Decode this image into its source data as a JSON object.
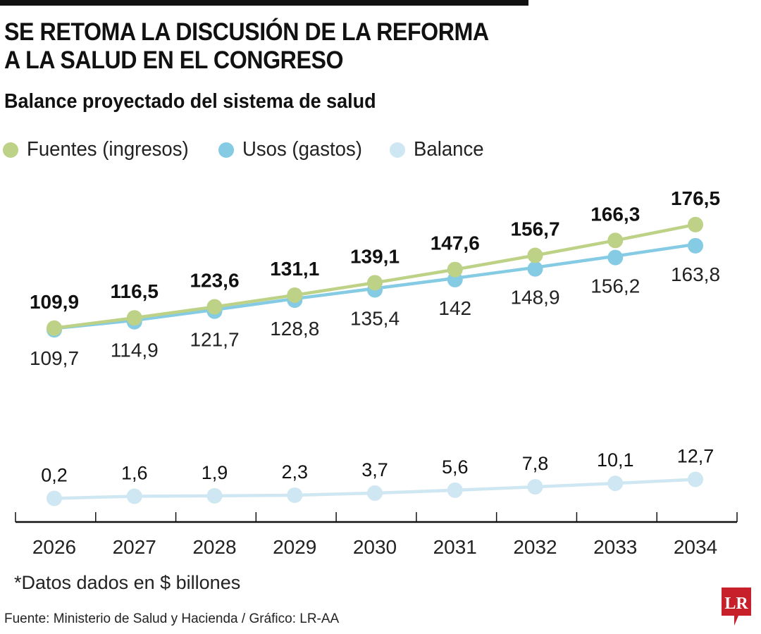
{
  "header": {
    "title_line1": "SE RETOMA LA DISCUSIÓN DE LA REFORMA",
    "title_line2": "A LA SALUD EN EL CONGRESO",
    "subtitle": "Balance proyectado del sistema de salud"
  },
  "legend": [
    {
      "label": "Fuentes (ingresos)",
      "color": "#bdd286"
    },
    {
      "label": "Usos (gastos)",
      "color": "#84cbe3"
    },
    {
      "label": "Balance",
      "color": "#cfe7f2"
    }
  ],
  "chart_data": {
    "type": "line",
    "title": "Balance proyectado del sistema de salud",
    "xlabel": "",
    "ylabel": "",
    "units": "$ billones",
    "grid": false,
    "legend_position": "top-left",
    "x": [
      "2026",
      "2027",
      "2028",
      "2029",
      "2030",
      "2031",
      "2032",
      "2033",
      "2034"
    ],
    "series": [
      {
        "name": "Fuentes (ingresos)",
        "color": "#bdd286",
        "values": [
          109.9,
          116.5,
          123.6,
          131.1,
          139.1,
          147.6,
          156.7,
          166.3,
          176.5
        ],
        "labels": [
          "109,9",
          "116,5",
          "123,6",
          "131,1",
          "139,1",
          "147,6",
          "156,7",
          "166,3",
          "176,5"
        ]
      },
      {
        "name": "Usos (gastos)",
        "color": "#84cbe3",
        "values": [
          109.7,
          114.9,
          121.7,
          128.8,
          135.4,
          142,
          148.9,
          156.2,
          163.8
        ],
        "labels": [
          "109,7",
          "114,9",
          "121,7",
          "128,8",
          "135,4",
          "142",
          "148,9",
          "156,2",
          "163,8"
        ]
      },
      {
        "name": "Balance",
        "color": "#cfe7f2",
        "values": [
          0.2,
          1.6,
          1.9,
          2.3,
          3.7,
          5.6,
          7.8,
          10.1,
          12.7
        ],
        "labels": [
          "0,2",
          "1,6",
          "1,9",
          "2,3",
          "3,7",
          "5,6",
          "7,8",
          "10,1",
          "12,7"
        ]
      }
    ]
  },
  "footer": {
    "note": "*Datos dados en $ billones",
    "source": "Fuente: Ministerio de Salud y Hacienda / Gráfico: LR-AA",
    "logo_text": "LR",
    "logo_color": "#c8202a"
  }
}
